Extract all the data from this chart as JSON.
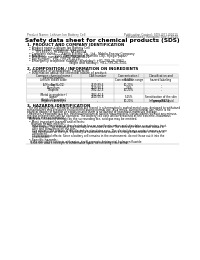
{
  "bg_color": "#ffffff",
  "header_left": "Product Name: Lithium Ion Battery Cell",
  "header_right_line1": "Publication Control: SDS-001-00015",
  "header_right_line2": "Established / Revision: Dec.7.2010",
  "title": "Safety data sheet for chemical products (SDS)",
  "section1_title": "1. PRODUCT AND COMPANY IDENTIFICATION",
  "section1_lines": [
    "  • Product name: Lithium Ion Battery Cell",
    "  • Product code: Cylindrical-type cell",
    "         SY18650U, SY18650L, SY18650A",
    "  • Company name:     Sanyo Electric Co., Ltd., Mobile Energy Company",
    "  • Address:          2001 Kamimaruoka, Sumoto City, Hyogo, Japan",
    "  • Telephone number:  +81-799-26-4111",
    "  • Fax number:  +81-799-26-4129",
    "  • Emergency telephone number (Weekday): +81-799-26-3962",
    "                                          (Night and holiday): +81-799-26-3101"
  ],
  "section2_title": "2. COMPOSITION / INFORMATION ON INGREDIENTS",
  "section2_intro": "  • Substance or preparation: Preparation",
  "section2_sub": "  • Information about the chemical nature of product:",
  "table_col0_header": "Common chemical name /",
  "table_col0_subheader": "Several names",
  "table_headers": [
    "CAS number",
    "Concentration /\nConcentration range",
    "Classification and\nhazard labeling"
  ],
  "table_rows": [
    [
      "Lithium cobalt oxide\n(LiMnxCoyNizO2)",
      "-",
      "30-60%",
      "-"
    ],
    [
      "Iron",
      "7439-89-6",
      "10-20%",
      "-"
    ],
    [
      "Aluminum",
      "7429-90-5",
      "2-5%",
      "-"
    ],
    [
      "Graphite\n(Metal in graphite+)\n(Artificial graphite)",
      "7782-42-5\n7782-42-5",
      "10-20%",
      "-"
    ],
    [
      "Copper",
      "7440-50-8",
      "5-15%",
      "Sensitization of the skin\ngroup R42.2"
    ],
    [
      "Organic electrolyte",
      "-",
      "10-20%",
      "Inflammable liquid"
    ]
  ],
  "section3_title": "3. HAZARDS IDENTIFICATION",
  "section3_lines": [
    "  For the battery cell, chemical materials are stored in a hermetically sealed metal case, designed to withstand",
    "temperatures and pressures encountered during normal use. As a result, during normal use, there is no",
    "physical danger of ignition or explosion and there is no danger of hazardous materials leakage.",
    "  However, if exposed to a fire, external mechanical shocks, decomposed, similar alarms without any misuse,",
    "the gas release vent will be operated. The battery cell case will be breached at the extreme, hazardous",
    "materials may be released.",
    "  Moreover, if heated strongly by the surrounding fire, acid gas may be emitted."
  ],
  "section3_bullet1": "  • Most important hazard and effects:",
  "section3_human": "    Human health effects:",
  "section3_inhalation": "      Inhalation: The release of the electrolyte has an anesthesia action and stimulates a respiratory tract.",
  "section3_skin1": "      Skin contact: The release of the electrolyte stimulates a skin. The electrolyte skin contact causes a",
  "section3_skin2": "      sore and stimulation on the skin.",
  "section3_eye1": "      Eye contact: The release of the electrolyte stimulates eyes. The electrolyte eye contact causes a sore",
  "section3_eye2": "      and stimulation on the eye. Especially, a substance that causes a strong inflammation of the eye is",
  "section3_eye3": "      considered.",
  "section3_env1": "      Environmental effects: Since a battery cell remains in the environment, do not throw out it into the",
  "section3_env2": "      environment.",
  "section3_specific": "  • Specific hazards:",
  "section3_sp1": "    If the electrolyte contacts with water, it will generate detrimental hydrogen fluoride.",
  "section3_sp2": "    Since the used electrolyte is inflammable liquid, do not bring close to fire.",
  "footer_line": true
}
